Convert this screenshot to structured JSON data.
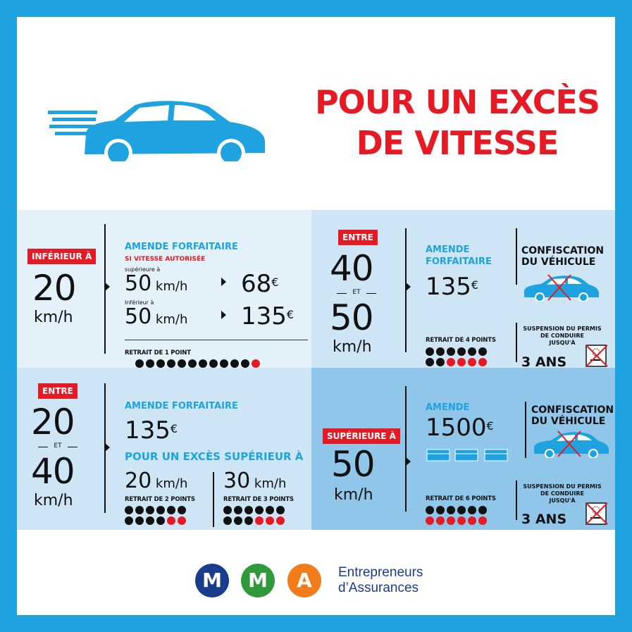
{
  "title": {
    "line1": "POUR UN EXCÈS",
    "line2": "DE VITESSE"
  },
  "colors": {
    "frame": "#1fa3e0",
    "red": "#e51a24",
    "blue": "#1fa3e0"
  },
  "icons": [
    "speeding-car-icon",
    "car-crossed-icon",
    "licence-crossed-icon",
    "banknotes-icon",
    "arrow-right-icon"
  ],
  "p1": {
    "badge": "INFÉRIEUR À",
    "big": "20",
    "unit": "km/h",
    "heading": "AMENDE FORFAITAIRE",
    "subheading": "SI VITESSE AUTORISÉE",
    "row1_label": "supérieure à",
    "row1_speed": "50",
    "row1_unit": "km/h",
    "row1_fine": "68",
    "row1_cur": "€",
    "row2_label": "Inférieur à",
    "row2_speed": "50",
    "row2_unit": "km/h",
    "row2_fine": "135",
    "row2_cur": "€",
    "points": "RETRAIT DE 1 POINT",
    "points_lost": 1,
    "points_total": 12
  },
  "p2": {
    "badge": "ENTRE",
    "big1": "40",
    "et": "ET",
    "big2": "50",
    "unit": "km/h",
    "heading1": "AMENDE",
    "heading2": "FORFAITAIRE",
    "fine": "135",
    "cur": "€",
    "conf1": "CONFISCATION",
    "conf2": "DU VÉHICULE",
    "points": "RETRAIT DE 4 POINTS",
    "points_lost": 4,
    "points_total": 12,
    "susp1": "SUSPENSION DU PERMIS",
    "susp2": "DE CONDUIRE",
    "susp3": "JUSQU'À",
    "duration": "3 ANS"
  },
  "p3": {
    "badge": "ENTRE",
    "big1": "20",
    "et": "ET",
    "big2": "40",
    "unit": "km/h",
    "heading": "AMENDE FORFAITAIRE",
    "fine": "135",
    "cur": "€",
    "subheading": "POUR UN EXCÈS SUPÉRIEUR À",
    "a_speed": "20",
    "a_unit": "km/h",
    "a_points": "RETRAIT DE 2 POINTS",
    "a_lost": 2,
    "b_speed": "30",
    "b_unit": "km/h",
    "b_points": "RETRAIT DE 3 POINTS",
    "b_lost": 3,
    "points_total": 12
  },
  "p4": {
    "badge": "SUPÉRIEURE À",
    "big": "50",
    "unit": "km/h",
    "heading": "AMENDE",
    "fine": "1500",
    "cur": "€",
    "conf1": "CONFISCATION",
    "conf2": "DU VÉHICULE",
    "points": "RETRAIT DE 6 POINTS",
    "points_lost": 6,
    "points_total": 12,
    "susp1": "SUSPENSION DU PERMIS",
    "susp2": "DE CONDUIRE",
    "susp3": "JUSQU'À",
    "duration": "3 ANS"
  },
  "footer": {
    "logo": [
      "M",
      "M",
      "A"
    ],
    "logo_colors": [
      "#1a3c8c",
      "#2e9a3c",
      "#f07d1a"
    ],
    "brand1": "Entrepreneurs",
    "brand2": "d’Assurances"
  }
}
